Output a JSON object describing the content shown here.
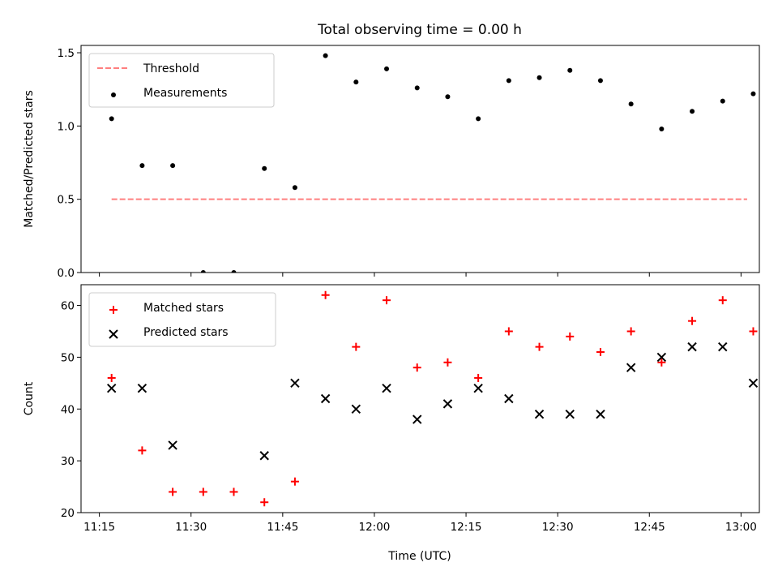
{
  "figure_title": "Total observing time = 0.00 h",
  "x_axis_label": "Time (UTC)",
  "chart_data": [
    {
      "type": "scatter",
      "ylabel": "Matched/Predicted stars",
      "ylim": [
        0,
        1.55
      ],
      "yticks": [
        "0.0",
        "0.5",
        "1.0",
        "1.5"
      ],
      "ytick_values": [
        0,
        0.5,
        1.0,
        1.5
      ],
      "legend_placement": "top-left",
      "series": [
        {
          "name": "Threshold",
          "kind": "line",
          "style": "dashed",
          "color": "#ff7f7f",
          "x": [
            "11:17",
            "13:01"
          ],
          "y": [
            0.5,
            0.5
          ]
        },
        {
          "name": "Measurements",
          "kind": "points",
          "marker": "dot",
          "color": "#000000",
          "x": [
            "11:17",
            "11:22",
            "11:27",
            "11:32",
            "11:37",
            "11:42",
            "11:47",
            "11:52",
            "11:57",
            "12:02",
            "12:07",
            "12:12",
            "12:17",
            "12:22",
            "12:27",
            "12:32",
            "12:37",
            "12:42",
            "12:47",
            "12:52",
            "12:57",
            "13:02"
          ],
          "y": [
            1.05,
            0.73,
            0.73,
            0.0,
            0.0,
            0.71,
            0.58,
            1.48,
            1.3,
            1.39,
            1.26,
            1.2,
            1.05,
            1.31,
            1.33,
            1.38,
            1.31,
            1.15,
            0.98,
            1.1,
            1.17,
            1.22
          ]
        }
      ]
    },
    {
      "type": "scatter",
      "ylabel": "Count",
      "ylim": [
        20,
        64
      ],
      "yticks": [
        "20",
        "30",
        "40",
        "50",
        "60"
      ],
      "ytick_values": [
        20,
        30,
        40,
        50,
        60
      ],
      "legend_placement": "top-left",
      "series": [
        {
          "name": "Matched stars",
          "kind": "points",
          "marker": "plus",
          "color": "#ff0000",
          "x": [
            "11:17",
            "11:22",
            "11:27",
            "11:32",
            "11:37",
            "11:42",
            "11:47",
            "11:52",
            "11:57",
            "12:02",
            "12:07",
            "12:12",
            "12:17",
            "12:22",
            "12:27",
            "12:32",
            "12:37",
            "12:42",
            "12:47",
            "12:52",
            "12:57",
            "13:02"
          ],
          "y": [
            46,
            32,
            24,
            24,
            24,
            22,
            26,
            62,
            52,
            61,
            48,
            49,
            46,
            55,
            52,
            54,
            51,
            55,
            49,
            57,
            61,
            55
          ]
        },
        {
          "name": "Predicted stars",
          "kind": "points",
          "marker": "x",
          "color": "#000000",
          "x": [
            "11:17",
            "11:22",
            "11:27",
            "11:42",
            "11:47",
            "11:52",
            "11:57",
            "12:02",
            "12:07",
            "12:12",
            "12:17",
            "12:22",
            "12:27",
            "12:32",
            "12:37",
            "12:42",
            "12:47",
            "12:52",
            "12:57",
            "13:02"
          ],
          "y": [
            44,
            44,
            33,
            31,
            45,
            42,
            40,
            44,
            38,
            41,
            44,
            42,
            39,
            39,
            39,
            48,
            50,
            52,
            52,
            45
          ]
        }
      ]
    }
  ],
  "xlim": [
    "11:12",
    "13:03"
  ],
  "xticks": [
    "11:15",
    "11:30",
    "11:45",
    "12:00",
    "12:15",
    "12:30",
    "12:45",
    "13:00"
  ]
}
